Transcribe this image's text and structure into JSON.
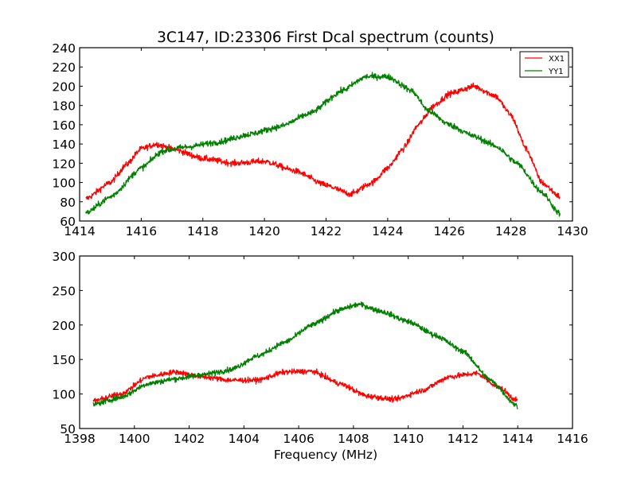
{
  "chart_data": [
    {
      "type": "line",
      "title": "3C147, ID:23306 First Dcal spectrum (counts)",
      "xlabel": "",
      "ylabel": "",
      "xlim": [
        1414,
        1430
      ],
      "ylim": [
        60,
        240
      ],
      "xticks": [
        "1414",
        "1416",
        "1418",
        "1420",
        "1422",
        "1424",
        "1426",
        "1428",
        "1430"
      ],
      "yticks": [
        "60",
        "80",
        "100",
        "120",
        "140",
        "160",
        "180",
        "200",
        "220",
        "240"
      ],
      "legend": {
        "position": "top-right",
        "entries": [
          "XX1",
          "YY1"
        ]
      },
      "grid": false,
      "series": [
        {
          "name": "XX1",
          "color": "#ff0000",
          "x": [
            1414.2,
            1415,
            1415.5,
            1416,
            1416.5,
            1417,
            1418,
            1419,
            1420,
            1421,
            1422,
            1422.8,
            1423.5,
            1424,
            1424.5,
            1425,
            1425.5,
            1426,
            1426.8,
            1427.5,
            1428,
            1428.5,
            1429,
            1429.6
          ],
          "y": [
            83,
            100,
            118,
            135,
            140,
            135,
            125,
            120,
            122,
            112,
            97,
            88,
            100,
            115,
            135,
            160,
            180,
            192,
            200,
            190,
            170,
            135,
            100,
            85
          ]
        },
        {
          "name": "YY1",
          "color": "#008000",
          "x": [
            1414.2,
            1415,
            1416,
            1416.7,
            1417.5,
            1418.5,
            1419.5,
            1420.5,
            1421.5,
            1422.5,
            1423.3,
            1424,
            1424.8,
            1425.3,
            1426,
            1426.8,
            1427.5,
            1428.2,
            1429,
            1429.6
          ],
          "y": [
            68,
            85,
            115,
            133,
            137,
            142,
            150,
            158,
            172,
            195,
            210,
            210,
            195,
            175,
            160,
            148,
            138,
            120,
            90,
            67
          ]
        }
      ]
    },
    {
      "type": "line",
      "title": "",
      "xlabel": "Frequency (MHz)",
      "ylabel": "",
      "xlim": [
        1398,
        1416
      ],
      "ylim": [
        50,
        300
      ],
      "xticks": [
        "1398",
        "1400",
        "1402",
        "1404",
        "1406",
        "1408",
        "1410",
        "1412",
        "1414",
        "1416"
      ],
      "yticks": [
        "50",
        "100",
        "150",
        "200",
        "250",
        "300"
      ],
      "grid": false,
      "series": [
        {
          "name": "XX1",
          "color": "#ff0000",
          "x": [
            1398.5,
            1399.5,
            1400.5,
            1401.5,
            1402.5,
            1403.5,
            1404.5,
            1405.5,
            1406.5,
            1407.5,
            1408.5,
            1409.5,
            1410.5,
            1411.5,
            1412.5,
            1413.3,
            1414
          ],
          "y": [
            90,
            100,
            125,
            132,
            125,
            120,
            120,
            132,
            133,
            115,
            97,
            92,
            105,
            125,
            130,
            110,
            90
          ]
        },
        {
          "name": "YY1",
          "color": "#008000",
          "x": [
            1398.5,
            1399.5,
            1400.5,
            1401.5,
            1402.5,
            1403.5,
            1404.5,
            1405.5,
            1406.5,
            1407.5,
            1408.2,
            1409,
            1410,
            1411,
            1412,
            1413,
            1414
          ],
          "y": [
            85,
            95,
            115,
            122,
            128,
            135,
            155,
            175,
            200,
            222,
            230,
            220,
            205,
            185,
            162,
            120,
            82
          ]
        }
      ]
    }
  ]
}
